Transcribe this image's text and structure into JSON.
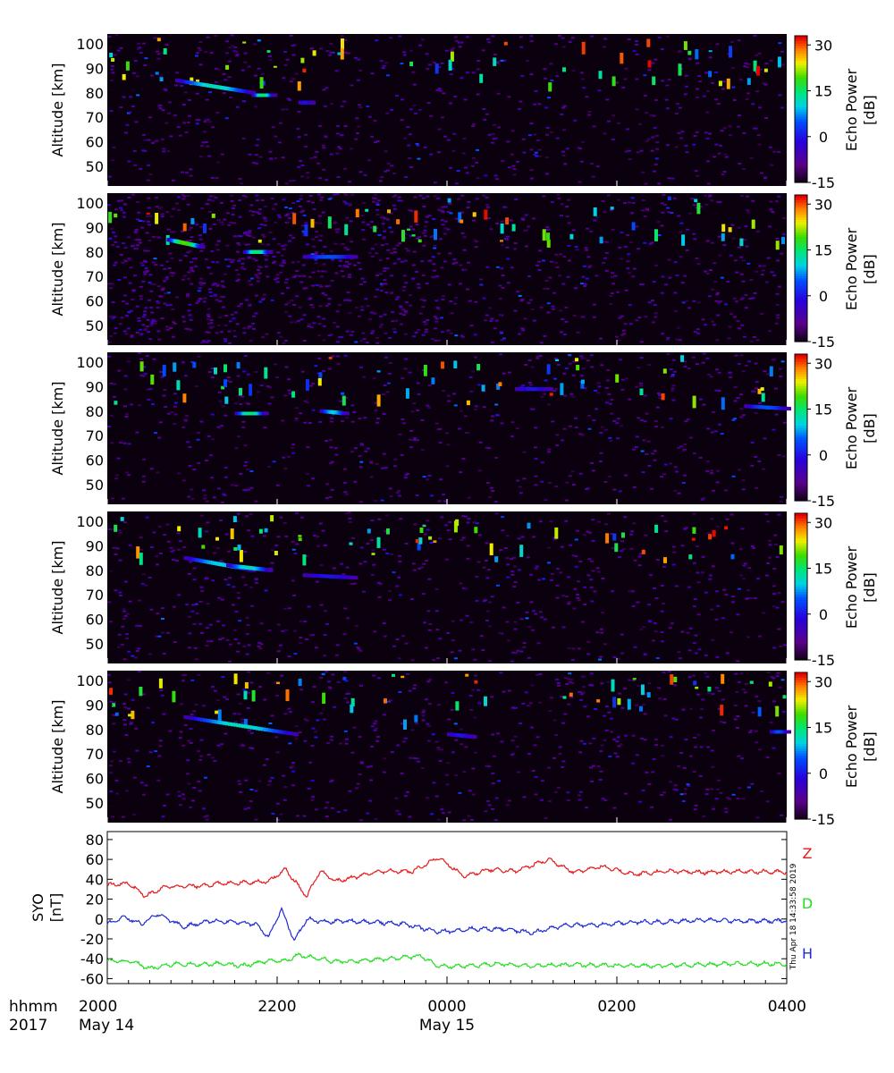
{
  "colors": {
    "Z": "#e41a1c",
    "D": "#22dd22",
    "H": "#1f2bd0"
  },
  "chart_data": [
    {
      "type": "heatmap",
      "panel": 1,
      "ylabel": "Altitude [km]",
      "ylim": [
        42,
        104
      ],
      "yticks": [
        50,
        60,
        70,
        80,
        90,
        100
      ],
      "colorbar": {
        "label_line1": "Echo Power",
        "label_line2": "[dB]",
        "range": [
          -15,
          33
        ],
        "ticks": [
          -15,
          0,
          15,
          30
        ],
        "colormap": "rainbow"
      },
      "features": [
        {
          "x_hours": [
            0.8,
            1.7
          ],
          "alt_km": [
            85,
            80
          ],
          "peak_db": 12
        },
        {
          "x_hours": [
            1.7,
            1.95
          ],
          "alt_km": [
            79,
            79
          ],
          "peak_db": 15
        },
        {
          "x_hours": [
            2.25,
            2.4
          ],
          "alt_km": [
            76,
            76
          ],
          "peak_db": 0
        }
      ]
    },
    {
      "type": "heatmap",
      "panel": 2,
      "ylabel": "Altitude [km]",
      "ylim": [
        42,
        104
      ],
      "yticks": [
        50,
        60,
        70,
        80,
        90,
        100
      ],
      "colorbar": {
        "label_line1": "Echo Power",
        "label_line2": "[dB]",
        "range": [
          -15,
          33
        ],
        "ticks": [
          -15,
          0,
          15,
          30
        ],
        "colormap": "rainbow"
      },
      "features": [
        {
          "x_hours": [
            0.7,
            1.1
          ],
          "alt_km": [
            85,
            82
          ],
          "peak_db": 20
        },
        {
          "x_hours": [
            1.6,
            1.9
          ],
          "alt_km": [
            80,
            80
          ],
          "peak_db": 15
        },
        {
          "x_hours": [
            2.3,
            2.9
          ],
          "alt_km": [
            78,
            78
          ],
          "peak_db": 5
        }
      ]
    },
    {
      "type": "heatmap",
      "panel": 3,
      "ylabel": "Altitude [km]",
      "ylim": [
        42,
        104
      ],
      "yticks": [
        50,
        60,
        70,
        80,
        90,
        100
      ],
      "colorbar": {
        "label_line1": "Echo Power",
        "label_line2": "[dB]",
        "range": [
          -15,
          33
        ],
        "ticks": [
          -15,
          0,
          15,
          30
        ],
        "colormap": "rainbow"
      },
      "features": [
        {
          "x_hours": [
            1.5,
            1.85
          ],
          "alt_km": [
            79,
            79
          ],
          "peak_db": 15
        },
        {
          "x_hours": [
            2.5,
            2.8
          ],
          "alt_km": [
            80,
            79
          ],
          "peak_db": 10
        },
        {
          "x_hours": [
            4.8,
            5.2
          ],
          "alt_km": [
            89,
            89
          ],
          "peak_db": 0
        },
        {
          "x_hours": [
            7.5,
            8.0
          ],
          "alt_km": [
            82,
            81
          ],
          "peak_db": 5
        }
      ]
    },
    {
      "type": "heatmap",
      "panel": 4,
      "ylabel": "Altitude [km]",
      "ylim": [
        42,
        104
      ],
      "yticks": [
        50,
        60,
        70,
        80,
        90,
        100
      ],
      "colorbar": {
        "label_line1": "Echo Power",
        "label_line2": "[dB]",
        "range": [
          -15,
          33
        ],
        "ticks": [
          -15,
          0,
          15,
          30
        ],
        "colormap": "rainbow"
      },
      "features": [
        {
          "x_hours": [
            0.9,
            1.7
          ],
          "alt_km": [
            85,
            80
          ],
          "peak_db": 10
        },
        {
          "x_hours": [
            1.4,
            1.9
          ],
          "alt_km": [
            82,
            80
          ],
          "peak_db": 12
        },
        {
          "x_hours": [
            2.3,
            2.9
          ],
          "alt_km": [
            78,
            77
          ],
          "peak_db": 0
        }
      ]
    },
    {
      "type": "heatmap",
      "panel": 5,
      "ylabel": "Altitude [km]",
      "ylim": [
        42,
        104
      ],
      "yticks": [
        50,
        60,
        70,
        80,
        90,
        100
      ],
      "colorbar": {
        "label_line1": "Echo Power",
        "label_line2": "[dB]",
        "range": [
          -15,
          33
        ],
        "ticks": [
          -15,
          0,
          15,
          30
        ],
        "colormap": "rainbow"
      },
      "features": [
        {
          "x_hours": [
            0.9,
            2.2
          ],
          "alt_km": [
            85,
            78
          ],
          "peak_db": 12
        },
        {
          "x_hours": [
            4.0,
            4.3
          ],
          "alt_km": [
            78,
            77
          ],
          "peak_db": 0
        },
        {
          "x_hours": [
            7.8,
            8.0
          ],
          "alt_km": [
            79,
            79
          ],
          "peak_db": 5
        }
      ]
    },
    {
      "type": "line",
      "panel": 6,
      "ylabel_line1": "SYO",
      "ylabel_line2": "[nT]",
      "ylim": [
        -65,
        88
      ],
      "yticks": [
        -60,
        -40,
        -20,
        0,
        20,
        40,
        60,
        80
      ],
      "timestamp": "Thu Apr 18 14:33:58 2019",
      "series": [
        {
          "name": "Z",
          "x_hours": [
            0,
            0.25,
            0.45,
            0.7,
            1.0,
            1.4,
            1.9,
            2.1,
            2.35,
            2.5,
            2.7,
            2.9,
            3.2,
            3.6,
            3.9,
            4.2,
            4.5,
            4.8,
            5.2,
            5.5,
            5.8,
            6.2,
            6.6,
            7.0,
            7.5,
            8.0
          ],
          "values": [
            34,
            36,
            23,
            33,
            33,
            36,
            38,
            50,
            22,
            48,
            38,
            42,
            48,
            48,
            62,
            43,
            50,
            48,
            60,
            47,
            53,
            45,
            48,
            47,
            48,
            47
          ]
        },
        {
          "name": "D",
          "x_hours": [
            0,
            0.3,
            0.5,
            0.8,
            1.0,
            1.3,
            1.6,
            1.9,
            2.1,
            2.25,
            2.5,
            2.7,
            3.0,
            3.3,
            3.7,
            3.9,
            4.3,
            4.6,
            5.0,
            5.5,
            6.0,
            6.5,
            7.0,
            7.5,
            8.0
          ],
          "values": [
            -42,
            -43,
            -50,
            -45,
            -46,
            -45,
            -47,
            -42,
            -42,
            -36,
            -40,
            -43,
            -42,
            -40,
            -37,
            -48,
            -47,
            -45,
            -47,
            -46,
            -47,
            -47,
            -46,
            -45,
            -45
          ]
        },
        {
          "name": "H",
          "x_hours": [
            0,
            0.2,
            0.4,
            0.6,
            0.9,
            1.2,
            1.5,
            1.75,
            1.9,
            2.05,
            2.2,
            2.35,
            2.55,
            2.8,
            3.1,
            3.5,
            3.9,
            4.3,
            4.7,
            5.0,
            5.4,
            5.8,
            6.2,
            6.6,
            7.0,
            7.5,
            8.0
          ],
          "values": [
            -5,
            2,
            -5,
            5,
            -8,
            -2,
            -3,
            -5,
            -18,
            10,
            -22,
            0,
            -3,
            -2,
            -3,
            -5,
            -13,
            -10,
            -10,
            -14,
            -6,
            -6,
            -3,
            -3,
            -1,
            -2,
            -2
          ]
        }
      ]
    }
  ],
  "x_axis": {
    "row1_label": "hhmm",
    "row2_label": "2017",
    "ticks": [
      {
        "time": "2000",
        "date": "May 14",
        "hours": 0
      },
      {
        "time": "2200",
        "date": "",
        "hours": 2
      },
      {
        "time": "0000",
        "date": "May 15",
        "hours": 4
      },
      {
        "time": "0200",
        "date": "",
        "hours": 6
      },
      {
        "time": "0400",
        "date": "",
        "hours": 8
      }
    ]
  }
}
